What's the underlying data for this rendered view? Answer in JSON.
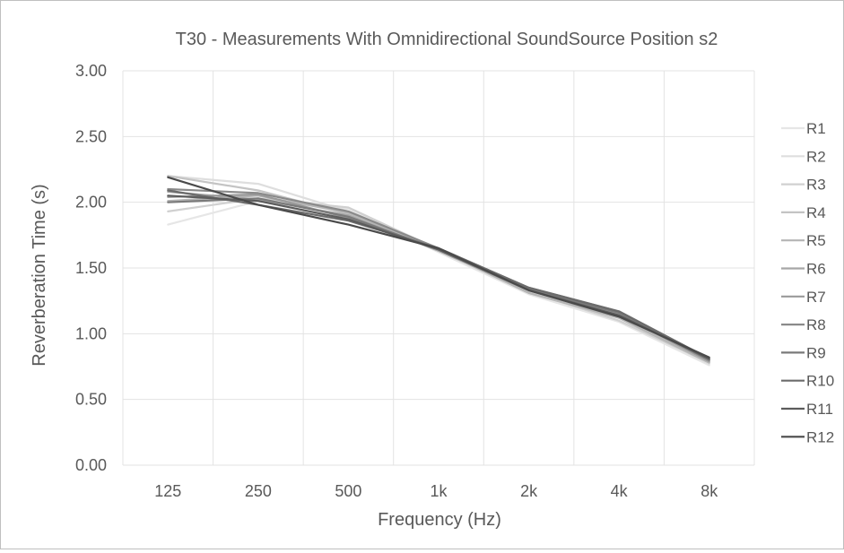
{
  "chart_data": {
    "type": "line",
    "title": "T30 - Measurements With Omnidirectional SoundSource Position s2",
    "xlabel": "Frequency (Hz)",
    "ylabel": "Reverberation Time (s)",
    "categories": [
      "125",
      "250",
      "500",
      "1k",
      "2k",
      "4k",
      "8k"
    ],
    "ylim": [
      0,
      3
    ],
    "yticks": [
      "0.00",
      "0.50",
      "1.00",
      "1.50",
      "2.00",
      "2.50",
      "3.00"
    ],
    "grid": true,
    "legend_position": "right",
    "series": [
      {
        "name": "R1",
        "color": "#e6e6e6",
        "values": [
          1.83,
          2.01,
          1.95,
          1.62,
          1.3,
          1.09,
          0.76
        ]
      },
      {
        "name": "R2",
        "color": "#dedede",
        "values": [
          2.2,
          2.14,
          1.93,
          1.63,
          1.31,
          1.12,
          0.77
        ]
      },
      {
        "name": "R3",
        "color": "#d0d0d0",
        "values": [
          1.93,
          2.03,
          1.96,
          1.64,
          1.32,
          1.1,
          0.78
        ]
      },
      {
        "name": "R4",
        "color": "#c4c4c4",
        "values": [
          2.2,
          2.09,
          1.91,
          1.65,
          1.33,
          1.13,
          0.79
        ]
      },
      {
        "name": "R5",
        "color": "#b5b5b5",
        "values": [
          2.01,
          2.05,
          1.92,
          1.64,
          1.31,
          1.12,
          0.78
        ]
      },
      {
        "name": "R6",
        "color": "#a6a6a6",
        "values": [
          2.08,
          2.02,
          1.9,
          1.63,
          1.33,
          1.14,
          0.8
        ]
      },
      {
        "name": "R7",
        "color": "#999999",
        "values": [
          2.04,
          2.06,
          1.88,
          1.64,
          1.34,
          1.15,
          0.79
        ]
      },
      {
        "name": "R8",
        "color": "#8a8a8a",
        "values": [
          2.1,
          2.07,
          1.93,
          1.65,
          1.35,
          1.17,
          0.81
        ]
      },
      {
        "name": "R9",
        "color": "#7a7a7a",
        "values": [
          2.0,
          2.03,
          1.89,
          1.64,
          1.34,
          1.16,
          0.8
        ]
      },
      {
        "name": "R10",
        "color": "#6b6b6b",
        "values": [
          2.09,
          1.98,
          1.86,
          1.65,
          1.35,
          1.17,
          0.81
        ]
      },
      {
        "name": "R11",
        "color": "#5c5c5c",
        "values": [
          2.05,
          2.01,
          1.87,
          1.64,
          1.33,
          1.14,
          0.81
        ]
      },
      {
        "name": "R12",
        "color": "#4a4a4a",
        "values": [
          2.19,
          1.98,
          1.83,
          1.65,
          1.33,
          1.13,
          0.82
        ]
      }
    ]
  }
}
